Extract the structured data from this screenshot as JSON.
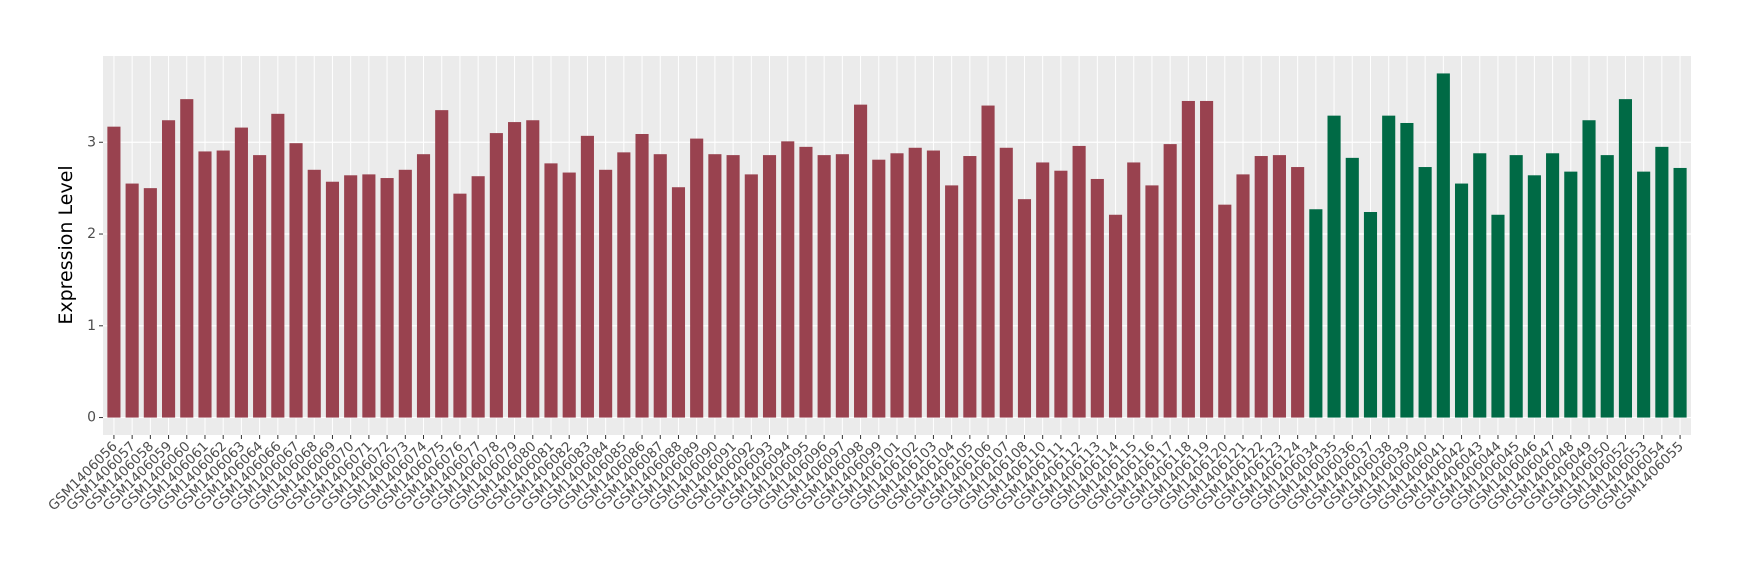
{
  "chart_data": {
    "type": "bar",
    "y_label": "Expression Level",
    "categories": [
      "GSM1406056",
      "GSM1406057",
      "GSM1406058",
      "GSM1406059",
      "GSM1406060",
      "GSM1406061",
      "GSM1406062",
      "GSM1406063",
      "GSM1406064",
      "GSM1406066",
      "GSM1406067",
      "GSM1406068",
      "GSM1406069",
      "GSM1406070",
      "GSM1406071",
      "GSM1406072",
      "GSM1406073",
      "GSM1406074",
      "GSM1406075",
      "GSM1406076",
      "GSM1406077",
      "GSM1406078",
      "GSM1406079",
      "GSM1406080",
      "GSM1406081",
      "GSM1406082",
      "GSM1406083",
      "GSM1406084",
      "GSM1406085",
      "GSM1406086",
      "GSM1406087",
      "GSM1406088",
      "GSM1406089",
      "GSM1406090",
      "GSM1406091",
      "GSM1406092",
      "GSM1406093",
      "GSM1406094",
      "GSM1406095",
      "GSM1406096",
      "GSM1406097",
      "GSM1406098",
      "GSM1406099",
      "GSM1406101",
      "GSM1406102",
      "GSM1406103",
      "GSM1406104",
      "GSM1406105",
      "GSM1406106",
      "GSM1406107",
      "GSM1406108",
      "GSM1406110",
      "GSM1406111",
      "GSM1406112",
      "GSM1406113",
      "GSM1406114",
      "GSM1406115",
      "GSM1406116",
      "GSM1406117",
      "GSM1406118",
      "GSM1406119",
      "GSM1406120",
      "GSM1406121",
      "GSM1406122",
      "GSM1406123",
      "GSM1406124",
      "GSM1406034",
      "GSM1406035",
      "GSM1406036",
      "GSM1406037",
      "GSM1406038",
      "GSM1406039",
      "GSM1406040",
      "GSM1406041",
      "GSM1406042",
      "GSM1406043",
      "GSM1406044",
      "GSM1406045",
      "GSM1406046",
      "GSM1406047",
      "GSM1406048",
      "GSM1406049",
      "GSM1406050",
      "GSM1406052",
      "GSM1406053",
      "GSM1406054",
      "GSM1406055"
    ],
    "values": [
      3.17,
      2.55,
      2.5,
      3.24,
      3.47,
      2.9,
      2.91,
      3.16,
      2.86,
      3.31,
      2.99,
      2.7,
      2.57,
      2.64,
      2.65,
      2.61,
      2.7,
      2.87,
      3.35,
      2.44,
      2.63,
      3.1,
      3.22,
      3.24,
      2.77,
      2.67,
      3.07,
      2.7,
      2.89,
      3.09,
      2.87,
      2.51,
      3.04,
      2.87,
      2.86,
      2.65,
      2.86,
      3.01,
      2.95,
      2.86,
      2.87,
      3.41,
      2.81,
      2.88,
      2.94,
      2.91,
      2.53,
      2.85,
      3.4,
      2.94,
      2.38,
      2.78,
      2.69,
      2.96,
      2.6,
      2.21,
      2.78,
      2.53,
      2.98,
      3.45,
      3.45,
      2.32,
      2.65,
      2.85,
      2.86,
      2.73,
      2.27,
      3.29,
      2.83,
      2.24,
      3.29,
      3.21,
      2.73,
      3.75,
      2.55,
      2.88,
      2.21,
      2.86,
      2.64,
      2.88,
      2.68,
      3.24,
      2.86,
      3.47,
      2.68,
      2.95,
      2.72
    ],
    "colors": [
      "#99424f",
      "#99424f",
      "#99424f",
      "#99424f",
      "#99424f",
      "#99424f",
      "#99424f",
      "#99424f",
      "#99424f",
      "#99424f",
      "#99424f",
      "#99424f",
      "#99424f",
      "#99424f",
      "#99424f",
      "#99424f",
      "#99424f",
      "#99424f",
      "#99424f",
      "#99424f",
      "#99424f",
      "#99424f",
      "#99424f",
      "#99424f",
      "#99424f",
      "#99424f",
      "#99424f",
      "#99424f",
      "#99424f",
      "#99424f",
      "#99424f",
      "#99424f",
      "#99424f",
      "#99424f",
      "#99424f",
      "#99424f",
      "#99424f",
      "#99424f",
      "#99424f",
      "#99424f",
      "#99424f",
      "#99424f",
      "#99424f",
      "#99424f",
      "#99424f",
      "#99424f",
      "#99424f",
      "#99424f",
      "#99424f",
      "#99424f",
      "#99424f",
      "#99424f",
      "#99424f",
      "#99424f",
      "#99424f",
      "#99424f",
      "#99424f",
      "#99424f",
      "#99424f",
      "#99424f",
      "#99424f",
      "#99424f",
      "#99424f",
      "#99424f",
      "#99424f",
      "#99424f",
      "#006a45",
      "#006a45",
      "#006a45",
      "#006a45",
      "#006a45",
      "#006a45",
      "#006a45",
      "#006a45",
      "#006a45",
      "#006a45",
      "#006a45",
      "#006a45",
      "#006a45",
      "#006a45",
      "#006a45",
      "#006a45",
      "#006a45",
      "#006a45",
      "#006a45",
      "#006a45",
      "#006a45"
    ],
    "ylim": [
      -0.19,
      3.94
    ],
    "yticks": [
      0,
      1,
      2,
      3
    ],
    "grid": true
  }
}
